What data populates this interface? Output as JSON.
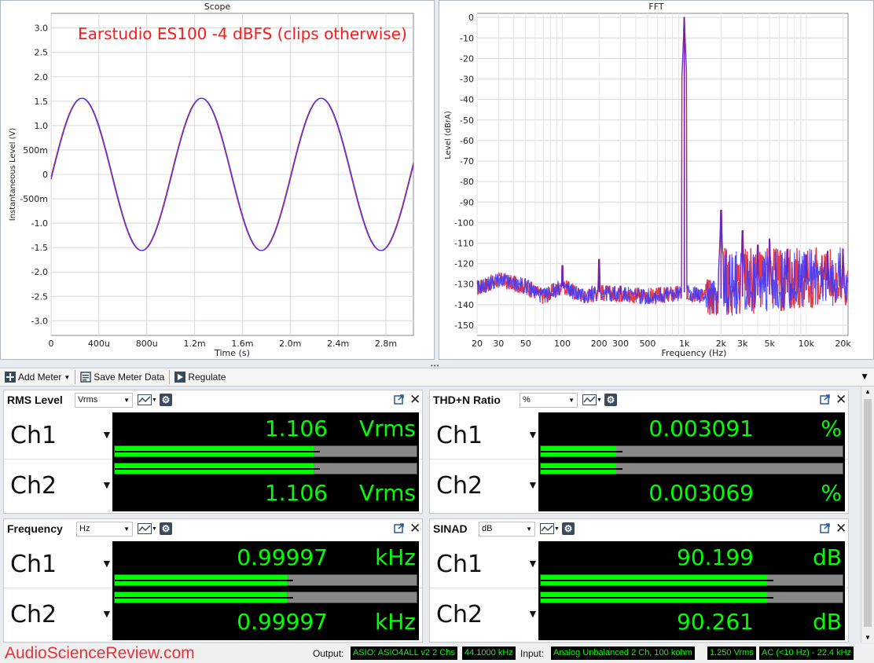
{
  "scope": {
    "title": "Scope",
    "annotation": "Earstudio ES100 -4 dBFS (clips otherwise)",
    "ylabel": "Instantaneous Level (V)",
    "xlabel": "Time (s)",
    "yticks": [
      "3.0",
      "2.5",
      "2.0",
      "1.5",
      "1.0",
      "500m",
      "0",
      "-500m",
      "-1.0",
      "-1.5",
      "-2.0",
      "-2.5",
      "-3.0"
    ],
    "xticks": [
      "0",
      "400u",
      "800u",
      "1.2m",
      "1.6m",
      "2.0m",
      "2.4m",
      "2.8m"
    ],
    "colors": {
      "ch1": "#e8303a",
      "ch2": "#3a3aff"
    }
  },
  "fft": {
    "title": "FFT",
    "ylabel": "Level (dBrA)",
    "xlabel": "Frequency (Hz)",
    "yticks": [
      "0",
      "-10",
      "-20",
      "-30",
      "-40",
      "-50",
      "-60",
      "-70",
      "-80",
      "-90",
      "-100",
      "-110",
      "-120",
      "-130",
      "-140",
      "-150"
    ],
    "xticks": [
      "20",
      "30",
      "50",
      "100",
      "200",
      "300",
      "500",
      "1k",
      "2k",
      "3k",
      "5k",
      "10k",
      "20k"
    ]
  },
  "chart_data": [
    {
      "type": "line",
      "title": "Scope",
      "xlabel": "Time (s)",
      "ylabel": "Instantaneous Level (V)",
      "xlim": [
        0,
        0.00303
      ],
      "ylim": [
        -3.3,
        3.3
      ],
      "series": [
        {
          "amplitude": 1.56,
          "frequency_hz": 999.97,
          "start_value": -0.05,
          "color": "#e8303a"
        },
        {
          "amplitude": 1.56,
          "frequency_hz": 999.97,
          "start_value": -0.1,
          "color": "#3a3aff"
        }
      ]
    },
    {
      "type": "line",
      "title": "FFT",
      "xlabel": "Frequency (Hz)",
      "ylabel": "Level (dBrA)",
      "x_scale": "log",
      "xlim": [
        20,
        22000
      ],
      "ylim": [
        -155,
        2
      ],
      "noise_floor": [
        {
          "x": 20,
          "y": -132
        },
        {
          "x": 30,
          "y": -128
        },
        {
          "x": 50,
          "y": -131
        },
        {
          "x": 70,
          "y": -136
        },
        {
          "x": 100,
          "y": -131
        },
        {
          "x": 150,
          "y": -136
        },
        {
          "x": 200,
          "y": -134
        },
        {
          "x": 300,
          "y": -135
        },
        {
          "x": 500,
          "y": -136
        },
        {
          "x": 800,
          "y": -135
        },
        {
          "x": 1000,
          "y": -134
        },
        {
          "x": 2000,
          "y": -137
        },
        {
          "x": 5000,
          "y": -135
        },
        {
          "x": 10000,
          "y": -133
        },
        {
          "x": 20000,
          "y": -132
        }
      ],
      "peaks": [
        {
          "x": 100,
          "y": -121
        },
        {
          "x": 200,
          "y": -118
        },
        {
          "x": 300,
          "y": -131
        },
        {
          "x": 1000,
          "y": 0
        },
        {
          "x": 2000,
          "y": -94
        },
        {
          "x": 3000,
          "y": -104
        },
        {
          "x": 4000,
          "y": -111
        },
        {
          "x": 5000,
          "y": -108
        },
        {
          "x": 7000,
          "y": -113
        },
        {
          "x": 10000,
          "y": -116
        },
        {
          "x": 15000,
          "y": -114
        },
        {
          "x": 20000,
          "y": -113
        }
      ],
      "series_colors": [
        "#e8303a",
        "#3a3aff"
      ]
    }
  ],
  "toolbar": {
    "add_meter": "Add Meter",
    "save_meter": "Save Meter Data",
    "regulate": "Regulate"
  },
  "meters": {
    "rms": {
      "title": "RMS Level",
      "unit_select": "Vrms",
      "ch1_value": "1.106",
      "ch1_unit": "Vrms",
      "ch2_value": "1.106",
      "ch2_unit": "Vrms",
      "ch1_fill": 0.66,
      "ch2_fill": 0.66
    },
    "thdn": {
      "title": "THD+N Ratio",
      "unit_select": "%",
      "ch1_value": "0.003091",
      "ch1_unit": "%",
      "ch2_value": "0.003069",
      "ch2_unit": "%",
      "ch1_fill": 0.25,
      "ch2_fill": 0.25
    },
    "freq": {
      "title": "Frequency",
      "unit_select": "Hz",
      "ch1_value": "0.99997",
      "ch1_unit": "kHz",
      "ch2_value": "0.99997",
      "ch2_unit": "kHz",
      "ch1_fill": 0.57,
      "ch2_fill": 0.57
    },
    "sinad": {
      "title": "SINAD",
      "unit_select": "dB",
      "ch1_value": "90.199",
      "ch1_unit": "dB",
      "ch2_value": "90.261",
      "ch2_unit": "dB",
      "ch1_fill": 0.75,
      "ch2_fill": 0.75
    }
  },
  "channels": {
    "ch1": "Ch1",
    "ch2": "Ch2"
  },
  "status": {
    "brand": "AudioScienceReview.com",
    "output_label": "Output:",
    "output_device": "ASIO: ASIO4ALL v2 2 Chs",
    "output_rate": "44.1000 kHz",
    "input_label": "Input:",
    "input_device": "Analog Unbalanced 2 Ch, 100 kohm",
    "input_range": "1.250 Vrms",
    "input_coupling": "AC (<10 Hz) - 22.4 kHz"
  }
}
